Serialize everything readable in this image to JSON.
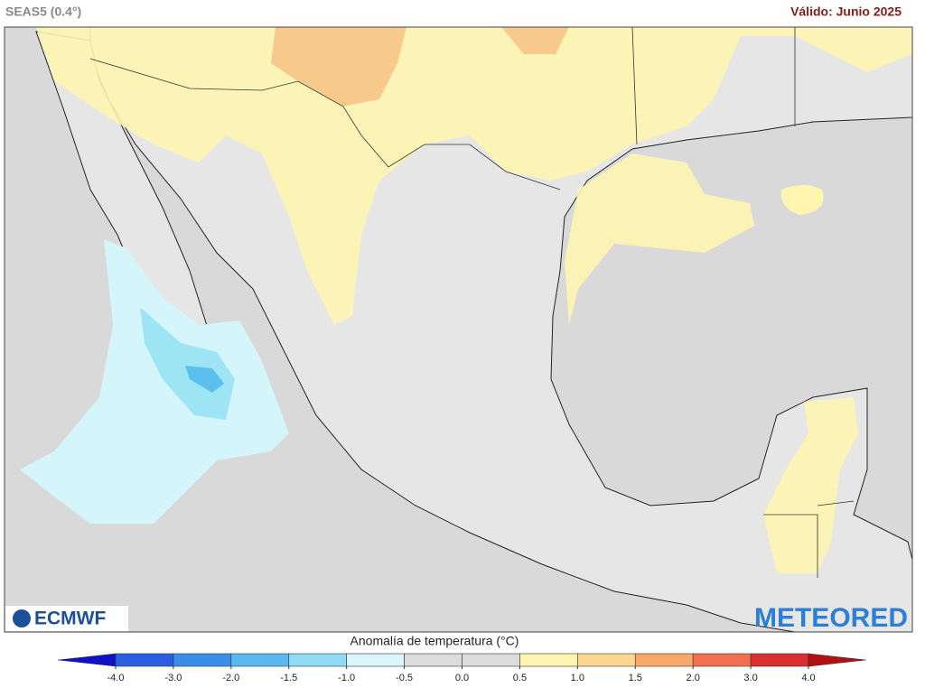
{
  "header": {
    "title": "SEAS5 (0.4°)",
    "valid": "Válido: Junio 2025"
  },
  "logos": {
    "left": "ECMWF",
    "right": "METEORED"
  },
  "legend": {
    "title": "Anomalía de temperatura (°C)",
    "ticks": [
      {
        "value": -4,
        "label": "-4.0"
      },
      {
        "value": -3,
        "label": "-3.0"
      },
      {
        "value": -2,
        "label": "-2.0"
      },
      {
        "value": -1.5,
        "label": "-1.5"
      },
      {
        "value": -1,
        "label": "-1.0"
      },
      {
        "value": -0.5,
        "label": "-0.5"
      },
      {
        "value": 0,
        "label": "0.0"
      },
      {
        "value": 0.5,
        "label": "0.5"
      },
      {
        "value": 1,
        "label": "1.0"
      },
      {
        "value": 1.5,
        "label": "1.5"
      },
      {
        "value": 2,
        "label": "2.0"
      },
      {
        "value": 3,
        "label": "3.0"
      },
      {
        "value": 4,
        "label": "4.0"
      }
    ],
    "colors": [
      "#1010c8",
      "#2a5fe0",
      "#3a8ee8",
      "#5ab8f0",
      "#90dcf5",
      "#d8f6fb",
      "#dcdcdc",
      "#dcdcdc",
      "#fdf5b0",
      "#fbd890",
      "#f8a868",
      "#f07050",
      "#d83030",
      "#b01010"
    ]
  }
}
